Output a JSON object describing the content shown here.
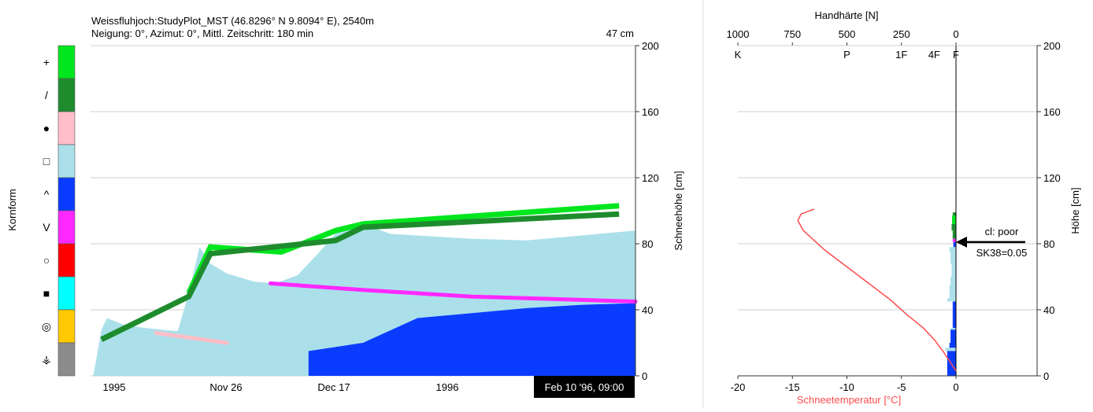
{
  "left_panel": {
    "header": {
      "line1": "Weissfluhjoch:StudyPlot_MST (46.8296° N 9.8094° E), 2540m",
      "line2": "Neigung: 0°, Azimut: 0°, Mittl. Zeitschritt: 180 min",
      "depth": "47 cm"
    },
    "timestamp": "Feb 10 '96, 09:00",
    "legend": {
      "title": "Kornform",
      "items": [
        {
          "symbol": "+",
          "color": "#00e61e"
        },
        {
          "symbol": "/",
          "color": "#1e8c2d"
        },
        {
          "symbol": "●",
          "color": "#ffbec8"
        },
        {
          "symbol": "□",
          "color": "#abe0ea"
        },
        {
          "symbol": "^",
          "color": "#0a3cff"
        },
        {
          "symbol": "V",
          "color": "#ff28ff"
        },
        {
          "symbol": "○",
          "color": "#ff0000"
        },
        {
          "symbol": "■",
          "color": "#00ffff"
        },
        {
          "symbol": "◎",
          "color": "#ffc800"
        },
        {
          "symbol": "⚶",
          "color": "#8c8c8c"
        }
      ]
    }
  },
  "right_panel": {
    "callout": {
      "line1": "cl: poor",
      "line2": "SK38=0.05"
    }
  },
  "chart_data": [
    {
      "type": "area",
      "x_tick_labels": [
        "1995",
        "Nov 26",
        "Dec 17",
        "1996"
      ],
      "ylabel": "Schneehöhe [cm]",
      "yticks": [
        0,
        40,
        80,
        120,
        160,
        200
      ],
      "ylim": [
        0,
        200
      ],
      "grid": true,
      "series": [
        {
          "color": "#abe0ea",
          "x": [
            0.005,
            0.02,
            0.03,
            0.06,
            0.1,
            0.16,
            0.18,
            0.2,
            0.22,
            0.25,
            0.3,
            0.34,
            0.38,
            0.42,
            0.46,
            0.5,
            0.55,
            0.6,
            0.65,
            0.7,
            0.8,
            0.9,
            1.0
          ],
          "top": [
            0,
            28,
            35,
            31,
            29,
            27,
            50,
            78,
            68,
            62,
            57,
            56,
            61,
            75,
            90,
            92,
            86,
            85,
            84,
            83,
            82,
            85,
            88
          ]
        },
        {
          "color": "#0a3cff",
          "x": [
            0.4,
            0.5,
            0.6,
            0.7,
            0.8,
            0.9,
            1.0
          ],
          "top": [
            15,
            20,
            35,
            38,
            41,
            43,
            44
          ]
        },
        {
          "color": "#ff28ff",
          "x": [
            0.33,
            0.5,
            0.7,
            1.0
          ],
          "top": [
            56,
            52,
            48,
            45
          ]
        },
        {
          "color": "#ffbec8",
          "x": [
            0.12,
            0.25
          ],
          "top": [
            26,
            20
          ]
        },
        {
          "color": "#00e61e",
          "x": [
            0.18,
            0.22,
            0.35,
            0.45,
            0.5,
            0.97
          ],
          "top": [
            50,
            78,
            75,
            88,
            92,
            103
          ]
        },
        {
          "color": "#1e8c2d",
          "x": [
            0.02,
            0.18,
            0.22,
            0.45,
            0.5,
            0.97
          ],
          "top": [
            22,
            48,
            74,
            82,
            90,
            98
          ]
        }
      ]
    },
    {
      "type": "line",
      "xlabel": "Schneetemperatur [°C]",
      "xticks": [
        -20,
        -15,
        -10,
        -5,
        0
      ],
      "xlim": [
        -20,
        0
      ],
      "top_xlabel": "Handhärte [N]",
      "top_xticks": [
        1000,
        750,
        500,
        250,
        0
      ],
      "hardness_labels": [
        {
          "label": "K",
          "value": 1000
        },
        {
          "label": "P",
          "value": 500
        },
        {
          "label": "1F",
          "value": 250
        },
        {
          "label": "4F",
          "value": 100
        },
        {
          "label": "F",
          "value": 0
        }
      ],
      "ylabel": "Höhe [cm]",
      "yticks": [
        0,
        40,
        80,
        120,
        160,
        200
      ],
      "ylim": [
        0,
        200
      ],
      "grid": true,
      "temperature_series": {
        "color": "#ff4c4c",
        "temp": [
          -13,
          -14.2,
          -14.5,
          -14,
          -12,
          -10,
          -8,
          -6,
          -4.5,
          -3,
          -2,
          -1.2,
          -0.5,
          0
        ],
        "height": [
          101,
          98,
          94,
          88,
          76,
          66,
          56,
          46,
          37,
          29,
          22,
          15,
          8,
          3
        ]
      },
      "hardness_profile": [
        {
          "h0": 0,
          "h1": 15,
          "hardness": 40,
          "color": "#0a3cff"
        },
        {
          "h0": 15,
          "h1": 17,
          "hardness": 50,
          "color": "#abe0ea"
        },
        {
          "h0": 17,
          "h1": 20,
          "hardness": 30,
          "color": "#0a3cff"
        },
        {
          "h0": 20,
          "h1": 28,
          "hardness": 25,
          "color": "#0a3cff"
        },
        {
          "h0": 28,
          "h1": 29,
          "hardness": 25,
          "color": "#abe0ea"
        },
        {
          "h0": 29,
          "h1": 45,
          "hardness": 15,
          "color": "#0a3cff"
        },
        {
          "h0": 45,
          "h1": 47,
          "hardness": 40,
          "color": "#abe0ea"
        },
        {
          "h0": 47,
          "h1": 55,
          "hardness": 30,
          "color": "#abe0ea"
        },
        {
          "h0": 55,
          "h1": 60,
          "hardness": 25,
          "color": "#abe0ea"
        },
        {
          "h0": 60,
          "h1": 68,
          "hardness": 20,
          "color": "#abe0ea"
        },
        {
          "h0": 68,
          "h1": 75,
          "hardness": 25,
          "color": "#abe0ea"
        },
        {
          "h0": 75,
          "h1": 78,
          "hardness": 30,
          "color": "#abe0ea"
        },
        {
          "h0": 78,
          "h1": 81,
          "hardness": 12,
          "color": "#0a3cff"
        },
        {
          "h0": 81,
          "h1": 83,
          "hardness": 15,
          "color": "#ff28ff"
        },
        {
          "h0": 83,
          "h1": 88,
          "hardness": 15,
          "color": "#1e8c2d"
        },
        {
          "h0": 88,
          "h1": 92,
          "hardness": 20,
          "color": "#1e8c2d"
        },
        {
          "h0": 92,
          "h1": 97,
          "hardness": 18,
          "color": "#00e61e"
        },
        {
          "h0": 97,
          "h1": 99,
          "hardness": 15,
          "color": "#1e8c2d"
        }
      ],
      "callout_height": 81
    }
  ]
}
